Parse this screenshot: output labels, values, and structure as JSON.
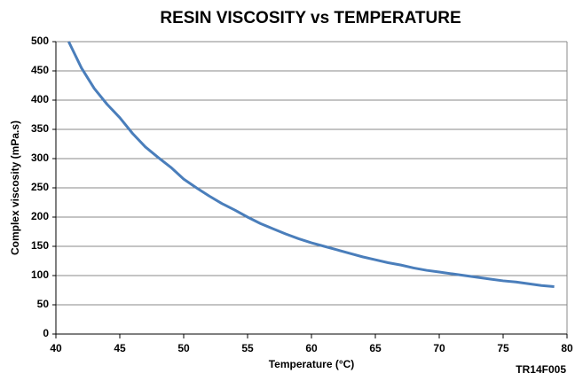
{
  "chart_data": {
    "type": "line",
    "title": "RESIN VISCOSITY vs TEMPERATURE",
    "x_label": "Temperature (°C)",
    "y_label": "Complex viscosity (mPa.s)",
    "annotation": "TR14F005",
    "x": [
      41,
      42,
      43,
      44,
      45,
      46,
      47,
      48,
      49,
      50,
      51,
      52,
      53,
      54,
      55,
      56,
      57,
      58,
      59,
      60,
      61,
      62,
      63,
      64,
      65,
      66,
      67,
      68,
      69,
      70,
      71,
      72,
      73,
      74,
      75,
      76,
      77,
      78,
      79
    ],
    "series": [
      {
        "name": "Complex viscosity",
        "color": "#4a7ebb",
        "values": [
          500,
          455,
          420,
          393,
          370,
          343,
          320,
          302,
          285,
          265,
          250,
          236,
          223,
          212,
          200,
          189,
          180,
          171,
          163,
          156,
          150,
          144,
          138,
          132,
          127,
          122,
          118,
          113,
          109,
          106,
          103,
          100,
          97,
          94,
          91,
          89,
          86,
          83,
          81
        ]
      }
    ],
    "xlim": [
      40,
      80
    ],
    "xticks": [
      40,
      45,
      50,
      55,
      60,
      65,
      70,
      75,
      80
    ],
    "ylim": [
      0,
      500
    ],
    "yticks": [
      0,
      50,
      100,
      150,
      200,
      250,
      300,
      350,
      400,
      450,
      500
    ],
    "grid": true
  }
}
